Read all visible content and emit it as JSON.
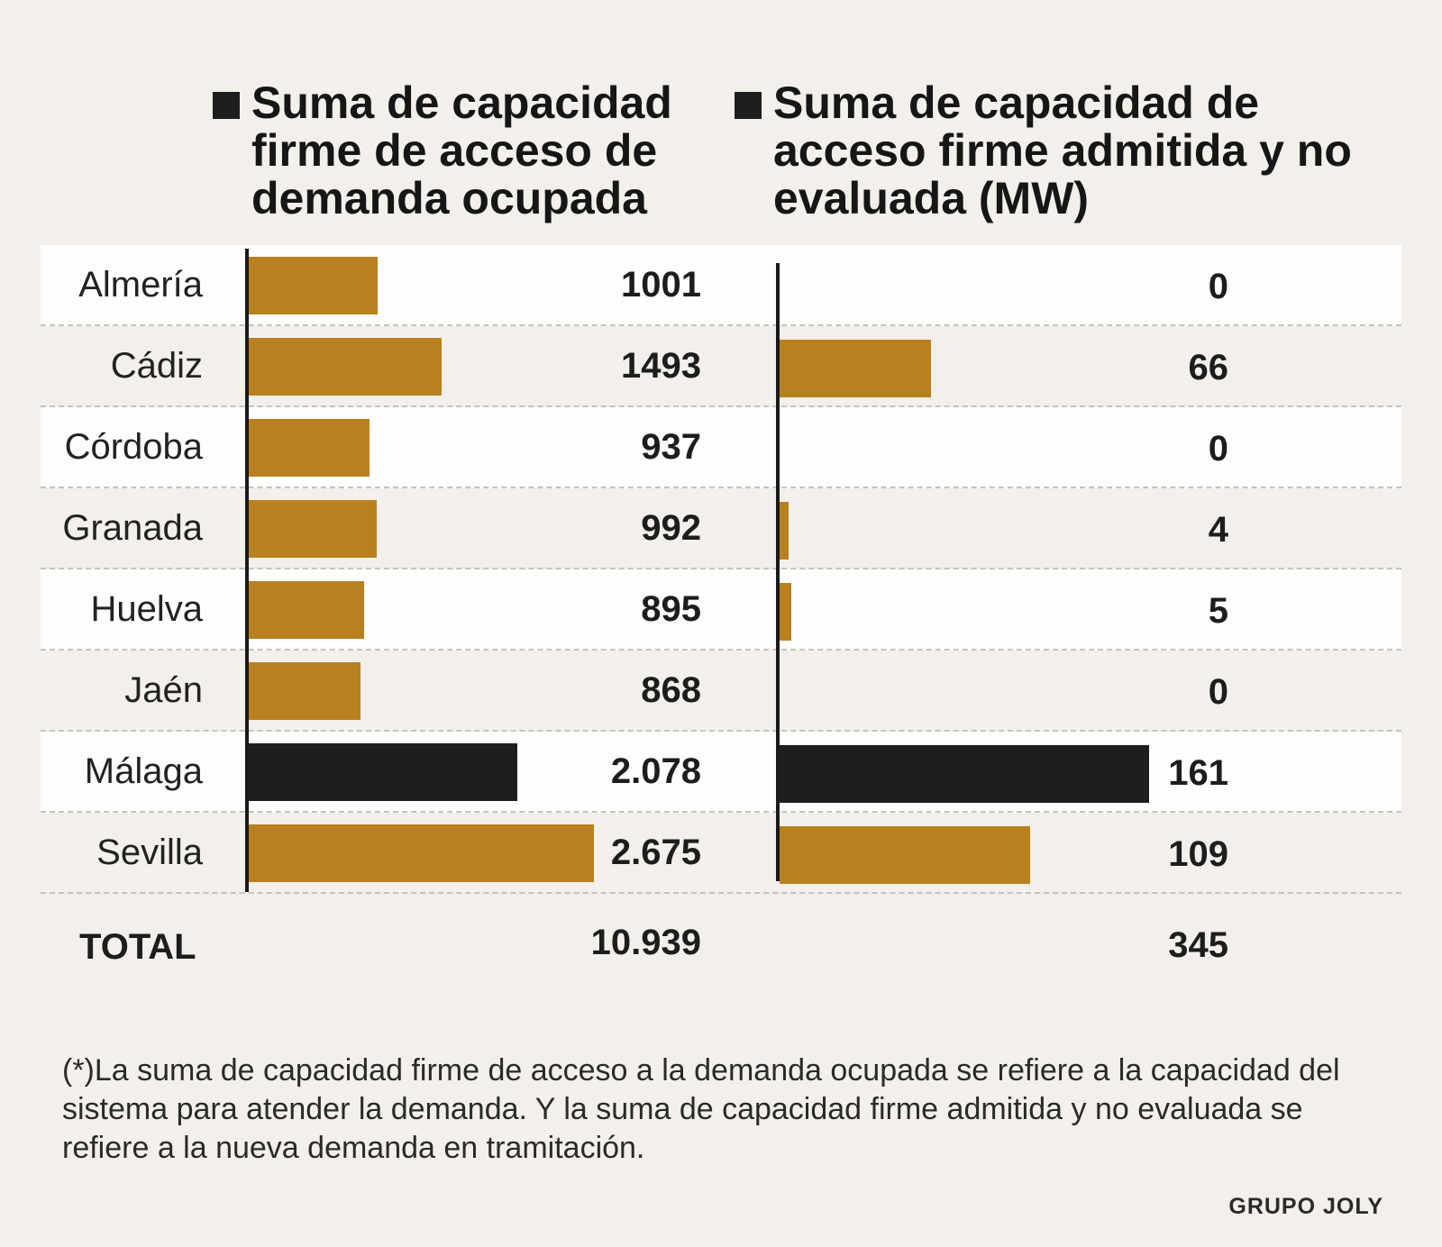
{
  "legend": {
    "left": "Suma de capacidad firme de acceso de demanda ocupada",
    "right": "Suma de capacidad de acceso firme admitida y no evaluada (MW)"
  },
  "colors": {
    "gold": "#b9801f",
    "highlight": "#1e1e1e"
  },
  "chart_data": {
    "type": "bar",
    "orientation": "horizontal",
    "categories": [
      "Almería",
      "Cádiz",
      "Córdoba",
      "Granada",
      "Huelva",
      "Jaén",
      "Málaga",
      "Sevilla"
    ],
    "highlight": "Málaga",
    "series": [
      {
        "name": "Suma de capacidad firme de acceso de demanda ocupada",
        "values": [
          1001,
          1493,
          937,
          992,
          895,
          868,
          2078,
          2675
        ],
        "labels": [
          "1001",
          "1493",
          "937",
          "992",
          "895",
          "868",
          "2.078",
          "2.675"
        ],
        "total": "10.939",
        "xlim": [
          0,
          2675
        ]
      },
      {
        "name": "Suma de capacidad de acceso firme admitida y no evaluada (MW)",
        "values": [
          0,
          66,
          0,
          4,
          5,
          0,
          161,
          109
        ],
        "labels": [
          "0",
          "66",
          "0",
          "4",
          "5",
          "0",
          "161",
          "109"
        ],
        "total": "345",
        "xlim": [
          0,
          161
        ]
      }
    ]
  },
  "total_label": "TOTAL",
  "footnote": "(*)La suma de capacidad firme de acceso a la demanda ocupada se refiere a la capacidad del sistema para atender la demanda. Y la suma de capacidad firme admitida y no evaluada se refiere a la nueva demanda en tramitación.",
  "credit": "GRUPO JOLY"
}
